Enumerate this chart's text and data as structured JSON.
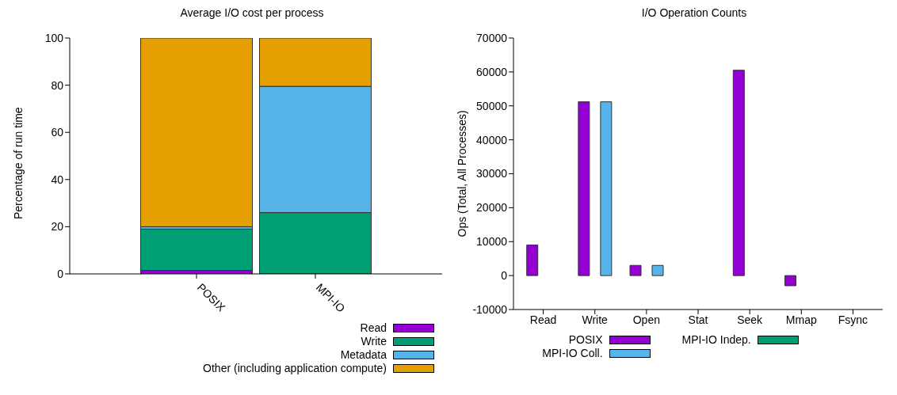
{
  "chart_data": [
    {
      "type": "bar",
      "title": "Average I/O cost per process",
      "ylabel": "Percentage of run time",
      "categories": [
        "POSIX",
        "MPI-IO"
      ],
      "stacked": true,
      "ylim": [
        0,
        100
      ],
      "yticks": [
        0,
        20,
        40,
        60,
        80,
        100
      ],
      "grid": false,
      "legend": "bottom right",
      "series": [
        {
          "name": "Read",
          "color": "#9400d3",
          "values": [
            1.5,
            0
          ]
        },
        {
          "name": "Write",
          "color": "#009e73",
          "values": [
            17.5,
            26
          ]
        },
        {
          "name": "Metadata",
          "color": "#56b4e9",
          "values": [
            1,
            53.5
          ]
        },
        {
          "name": "Other (including application compute)",
          "color": "#e69f00",
          "values": [
            80,
            20.5
          ]
        }
      ]
    },
    {
      "type": "bar",
      "title": "I/O Operation Counts",
      "ylabel": "Ops (Total, All Processes)",
      "categories": [
        "Read",
        "Write",
        "Open",
        "Stat",
        "Seek",
        "Mmap",
        "Fsync"
      ],
      "ylim": [
        -10000,
        70000
      ],
      "yticks": [
        -10000,
        0,
        10000,
        20000,
        30000,
        40000,
        50000,
        60000,
        70000
      ],
      "grid": false,
      "legend": "bottom",
      "series": [
        {
          "name": "POSIX",
          "color": "#9400d3",
          "values": [
            9000,
            51200,
            3000,
            0,
            60500,
            -3000,
            0
          ]
        },
        {
          "name": "MPI-IO Indep.",
          "color": "#009e73",
          "values": [
            0,
            0,
            0,
            0,
            0,
            0,
            0
          ]
        },
        {
          "name": "MPI-IO Coll.",
          "color": "#56b4e9",
          "values": [
            0,
            51200,
            3000,
            0,
            0,
            0,
            0
          ]
        }
      ]
    }
  ]
}
